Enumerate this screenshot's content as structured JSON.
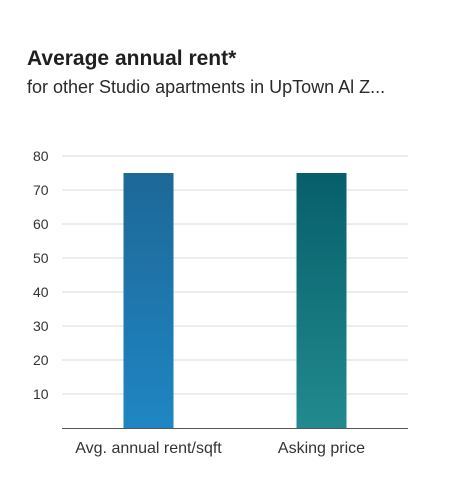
{
  "header": {
    "title": "Average annual rent*",
    "subtitle": "for other Studio apartments in UpTown Al Z..."
  },
  "chart_data": {
    "type": "bar",
    "categories": [
      "Avg. annual rent/sqft",
      "Asking price"
    ],
    "values": [
      75,
      75
    ],
    "yticks": [
      10,
      20,
      30,
      40,
      50,
      60,
      70,
      80
    ],
    "ylim": [
      0,
      80
    ],
    "grid": true,
    "bar_gradients": [
      {
        "top": "#1d6897",
        "bottom": "#1f86c3"
      },
      {
        "top": "#065f6b",
        "bottom": "#228a8e"
      }
    ],
    "gridline_color": "#d9d9d9",
    "axis_color": "#555555"
  }
}
